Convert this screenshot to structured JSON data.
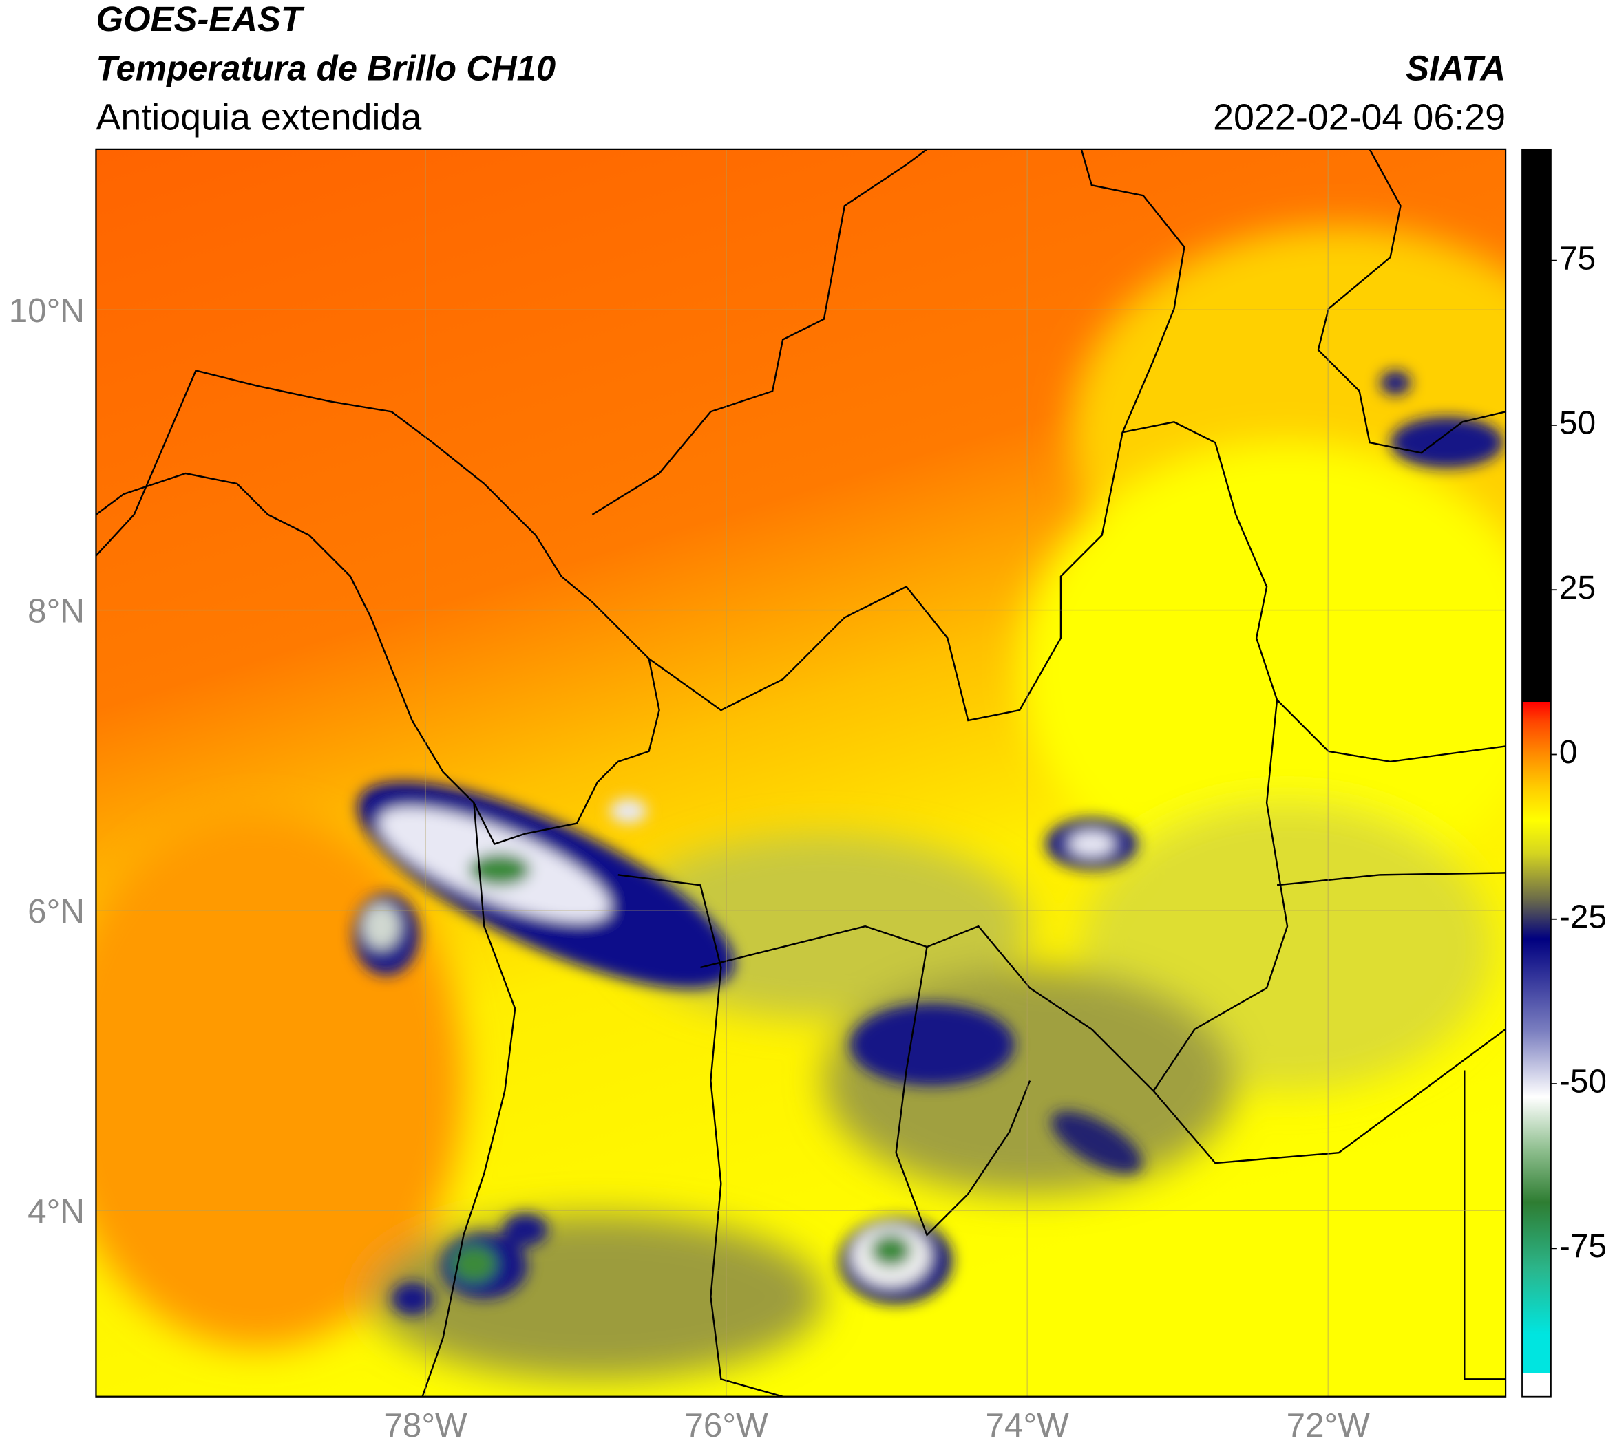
{
  "header": {
    "title": "GOES-EAST",
    "subtitle": "Temperatura de Brillo CH10",
    "region": "Antioquia extendida",
    "source": "SIATA",
    "timestamp": "2022-02-04 06:29"
  },
  "map": {
    "xlim": [
      -80.19,
      -70.82
    ],
    "ylim": [
      2.76,
      11.07
    ],
    "xticks": [
      {
        "value": -78,
        "label": "78°W"
      },
      {
        "value": -76,
        "label": "76°W"
      },
      {
        "value": -74,
        "label": "74°W"
      },
      {
        "value": -72,
        "label": "72°W"
      }
    ],
    "yticks": [
      {
        "value": 4,
        "label": "4°N"
      },
      {
        "value": 6,
        "label": "6°N"
      },
      {
        "value": 8,
        "label": "8°N"
      },
      {
        "value": 10,
        "label": "10°N"
      }
    ],
    "grid": true
  },
  "colorbar": {
    "lim": [
      -97.5,
      91.9
    ],
    "ticks": [
      -75,
      -50,
      -25,
      0,
      25,
      50,
      75
    ],
    "stops": [
      {
        "value": -97.5,
        "color": "#ffffff"
      },
      {
        "value": -94,
        "color": "#ffffff"
      },
      {
        "value": -94,
        "color": "#00e5e0"
      },
      {
        "value": -88,
        "color": "#00e5e0"
      },
      {
        "value": -78,
        "color": "#2bb58a"
      },
      {
        "value": -68,
        "color": "#2e7d32"
      },
      {
        "value": -60,
        "color": "#8fbf8f"
      },
      {
        "value": -52,
        "color": "#ffffff"
      },
      {
        "value": -42,
        "color": "#7b7fc0"
      },
      {
        "value": -28,
        "color": "#000080"
      },
      {
        "value": -22,
        "color": "#6b6b4a"
      },
      {
        "value": -15,
        "color": "#d5d520"
      },
      {
        "value": -10,
        "color": "#ffff00"
      },
      {
        "value": -5,
        "color": "#ffcc00"
      },
      {
        "value": 0,
        "color": "#ff8c00"
      },
      {
        "value": 5,
        "color": "#ff4500"
      },
      {
        "value": 8,
        "color": "#ff0000"
      },
      {
        "value": 8,
        "color": "#000000"
      },
      {
        "value": 91.9,
        "color": "#000000"
      }
    ]
  }
}
